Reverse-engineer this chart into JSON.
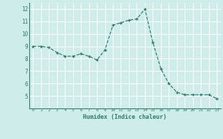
{
  "x": [
    0,
    1,
    2,
    3,
    4,
    5,
    6,
    7,
    8,
    9,
    10,
    11,
    12,
    13,
    14,
    15,
    16,
    17,
    18,
    19,
    20,
    21,
    22,
    23
  ],
  "y": [
    9.0,
    9.0,
    8.9,
    8.5,
    8.2,
    8.2,
    8.4,
    8.2,
    7.9,
    8.7,
    10.7,
    10.9,
    11.1,
    11.2,
    12.0,
    9.3,
    7.2,
    6.0,
    5.3,
    5.1,
    5.1,
    5.1,
    5.1,
    4.8
  ],
  "xlabel": "Humidex (Indice chaleur)",
  "ylim": [
    4,
    12.5
  ],
  "xlim": [
    -0.5,
    23.5
  ],
  "yticks": [
    5,
    6,
    7,
    8,
    9,
    10,
    11,
    12
  ],
  "xticks": [
    0,
    1,
    2,
    3,
    4,
    5,
    6,
    7,
    8,
    9,
    10,
    11,
    12,
    13,
    14,
    15,
    16,
    17,
    18,
    19,
    20,
    21,
    22,
    23
  ],
  "line_color": "#2e7d6e",
  "marker_color": "#2e7d6e",
  "bg_color": "#ceecea",
  "grid_color": "#ffffff",
  "grid_minor_color": "#e0f5f3"
}
